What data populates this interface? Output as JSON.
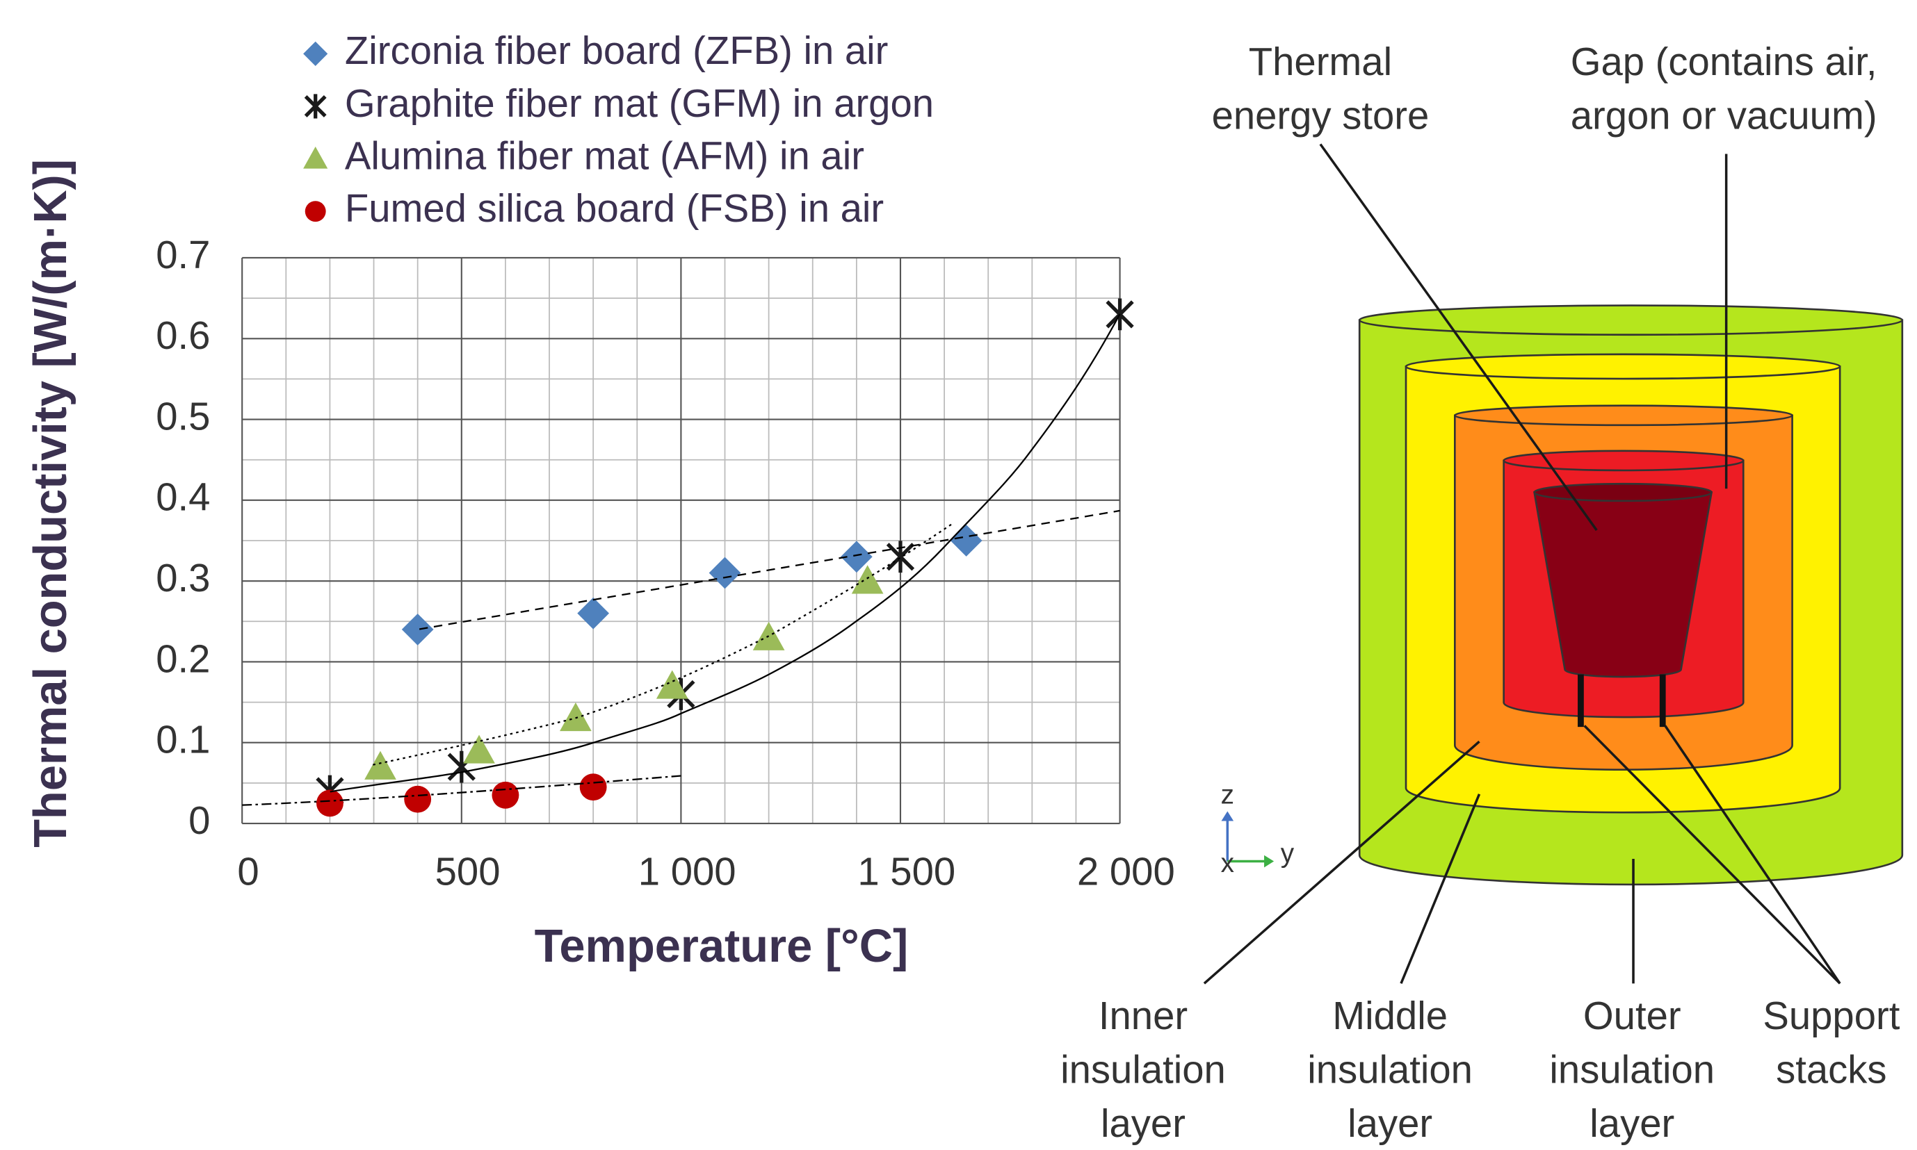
{
  "chart_data": {
    "type": "scatter",
    "x_label": "Temperature [°C]",
    "y_label": "Thermal conductivity [W/(m·K)]",
    "xlim": [
      0,
      2000
    ],
    "ylim": [
      0,
      0.7
    ],
    "xticks": [
      0,
      500,
      {
        "value": 1000,
        "label": "1 000"
      },
      {
        "value": 1500,
        "label": "1 500"
      },
      {
        "value": 2000,
        "label": "2 000"
      }
    ],
    "yticks": [
      0,
      0.1,
      0.2,
      0.3,
      0.4,
      0.5,
      0.6,
      0.7
    ],
    "grid": true,
    "minor_grid": true,
    "legend": "top",
    "series": [
      {
        "name": "Zirconia fiber board (ZFB) in air",
        "color": "#4f81bd",
        "marker": "diamond",
        "x": [
          400,
          800,
          1100,
          1400,
          1650
        ],
        "values": [
          0.24,
          0.26,
          0.31,
          0.33,
          0.35
        ]
      },
      {
        "name": "Graphite fiber mat (GFM) in argon",
        "color": "#1a1a1a",
        "marker": "asterisk",
        "x": [
          200,
          500,
          1000,
          1500,
          2000
        ],
        "values": [
          0.04,
          0.07,
          0.16,
          0.33,
          0.63
        ]
      },
      {
        "name": "Alumina fiber mat (AFM) in air",
        "color": "#9bbb59",
        "marker": "triangle",
        "x": [
          315,
          540,
          760,
          980,
          1200,
          1425
        ],
        "values": [
          0.07,
          0.09,
          0.13,
          0.17,
          0.23,
          0.3
        ]
      },
      {
        "name": "Fumed silica board (FSB) in air",
        "color": "#c00000",
        "marker": "circle",
        "x": [
          200,
          400,
          600,
          800
        ],
        "values": [
          0.025,
          0.03,
          0.035,
          0.045
        ]
      }
    ]
  },
  "diagram": {
    "axes": {
      "z": "z",
      "x": "x",
      "y": "y"
    },
    "labels": {
      "store": [
        "Thermal",
        "energy store"
      ],
      "gap": [
        "Gap (contains air,",
        "argon or vacuum)"
      ],
      "inner": [
        "Inner",
        "insulation",
        "layer"
      ],
      "middle": [
        "Middle",
        "insulation",
        "layer"
      ],
      "outer": [
        "Outer",
        "insulation",
        "layer"
      ],
      "support": [
        "Support",
        "stacks"
      ]
    }
  }
}
